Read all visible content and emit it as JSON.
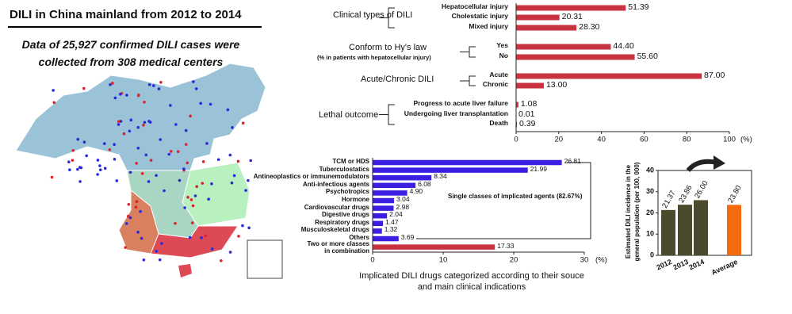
{
  "header": {
    "title": "DILI in China mainland from 2012 to 2014",
    "subtitle": [
      "Data of 25,927 confirmed DILI cases were",
      "collected from 308 medical centers"
    ]
  },
  "chart_data": [
    {
      "type": "bar",
      "orientation": "horizontal",
      "color": "#c8333f",
      "xlim": [
        0,
        100
      ],
      "xticks": [
        0,
        20,
        40,
        60,
        80,
        100
      ],
      "xlabel": "(%)",
      "groups": [
        {
          "label": "Clinical types of DILI",
          "categories": [
            "Hepatocellular injury",
            "Cholestatic injury",
            "Mixed injury"
          ],
          "values": [
            51.39,
            20.31,
            28.3
          ],
          "value_labels": [
            "51.39",
            "20.31",
            "28.30"
          ]
        },
        {
          "label": "Conform to Hy's law",
          "sublabel": "(% in patients with hepatocellular injury)",
          "categories": [
            "Yes",
            "No"
          ],
          "values": [
            44.4,
            55.6
          ],
          "value_labels": [
            "44.40",
            "55.60"
          ]
        },
        {
          "label": "Acute/Chronic DILI",
          "categories": [
            "Acute",
            "Chronic"
          ],
          "values": [
            87,
            13
          ],
          "value_labels": [
            "87.00",
            "13.00"
          ]
        },
        {
          "label": "Lethal outcome",
          "categories": [
            "Progress to acute liver failure",
            "Undergoing liver transplantation",
            "Death"
          ],
          "values": [
            1.08,
            0.01,
            0.39
          ],
          "value_labels": [
            "1.08",
            "0.01",
            "0.39"
          ]
        }
      ]
    },
    {
      "type": "bar",
      "orientation": "horizontal",
      "title": "Implicated DILI drugs categorized according to their souce\nand main clinical indications",
      "annotation": "Single classes of implicated agents (82.67%)",
      "xlim": [
        0,
        30
      ],
      "xticks": [
        0,
        10,
        20,
        30
      ],
      "xlabel": "(%)",
      "categories": [
        "TCM or HDS",
        "Tuberculostatics",
        "Antineoplastics or immunemodulators",
        "Anti-infectious agents",
        "Psychotropics",
        "Hormone",
        "Cardiovascular drugs",
        "Digestive drugs",
        "Respiratory drugs",
        "Musculoskeletal drugs",
        "Others",
        "Two or more classes\nin combination"
      ],
      "values": [
        26.81,
        21.99,
        8.34,
        6.08,
        4.9,
        3.04,
        2.98,
        2.04,
        1.47,
        1.32,
        3.69,
        17.33
      ],
      "value_labels": [
        "26.81",
        "21.99",
        "8.34",
        "6.08",
        "4.90",
        "3.04",
        "2.98",
        "2.04",
        "1.47",
        "1.32",
        "3.69",
        "17.33"
      ],
      "colors": [
        "#3a1fe0",
        "#3a1fe0",
        "#3a1fe0",
        "#3a1fe0",
        "#3a1fe0",
        "#3a1fe0",
        "#3a1fe0",
        "#3a1fe0",
        "#3a1fe0",
        "#3a1fe0",
        "#3a1fe0",
        "#c8333f"
      ]
    },
    {
      "type": "bar",
      "orientation": "vertical",
      "ylabel": "Estimated DILI incidence in the\ngeneral population (per 100, 000)",
      "categories": [
        "2012",
        "2013",
        "2014",
        "Average"
      ],
      "values": [
        21.37,
        23.86,
        26,
        23.8
      ],
      "value_labels": [
        "21.37",
        "23.86",
        "26.00",
        "23.80"
      ],
      "colors": [
        "#4b4a2c",
        "#4b4a2c",
        "#4b4a2c",
        "#f26b0f"
      ],
      "ylim": [
        0,
        40
      ],
      "yticks": [
        0,
        10,
        20,
        30,
        40
      ]
    }
  ]
}
